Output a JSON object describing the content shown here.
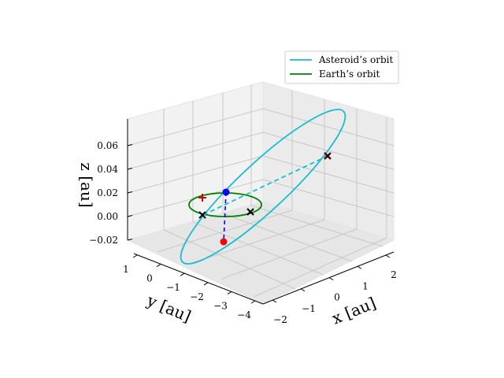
{
  "chart_data": {
    "type": "line",
    "projection": "3d",
    "grid": true,
    "legend_placement": "top-right",
    "axes": {
      "x": {
        "label": "x [au]",
        "ticks": [
          "−2",
          "−1",
          "0",
          "1",
          "2"
        ],
        "tick_values": [
          -2,
          -1,
          0,
          1,
          2
        ],
        "range": [
          -2.4,
          2.4
        ]
      },
      "y": {
        "label": "y [au]",
        "ticks": [
          "1",
          "0",
          "−1",
          "−2",
          "−3",
          "−4"
        ],
        "tick_values": [
          1,
          0,
          -1,
          -2,
          -3,
          -4
        ],
        "range": [
          -4.4,
          1.4
        ]
      },
      "z": {
        "label": "z [au]",
        "ticks": [
          "−0.02",
          "0.00",
          "0.02",
          "0.04",
          "0.06"
        ],
        "tick_values": [
          -0.02,
          0,
          0.02,
          0.04,
          0.06
        ],
        "range": [
          -0.03,
          0.07
        ]
      }
    },
    "series": [
      {
        "name": "Asteroid’s orbit",
        "color": "#17becf",
        "style": "solid"
      },
      {
        "name": "Earth’s orbit",
        "color": "#008000",
        "style": "solid"
      }
    ],
    "legend": [
      "Asteroid’s orbit",
      "Earth’s orbit"
    ],
    "markers": [
      {
        "symbol": "dot",
        "color": "#0000ff",
        "z": 0.02
      },
      {
        "symbol": "dot",
        "color": "#ff0000",
        "z": -0.02
      },
      {
        "symbol": "plus",
        "color": "#cc0000",
        "z": 0.017
      },
      {
        "symbol": "x",
        "color": "#000000",
        "z": 0.0
      },
      {
        "symbol": "x",
        "color": "#000000",
        "z": 0.0
      },
      {
        "symbol": "x",
        "color": "#000000",
        "z": 0.052
      },
      {
        "symbol": "x",
        "color": "#8b0000",
        "z": 0.052
      }
    ],
    "connectors": [
      {
        "color": "#0000ff",
        "style": "dashed",
        "z_from": -0.02,
        "z_to": 0.02
      },
      {
        "color": "#17becf",
        "style": "dashed"
      }
    ]
  }
}
